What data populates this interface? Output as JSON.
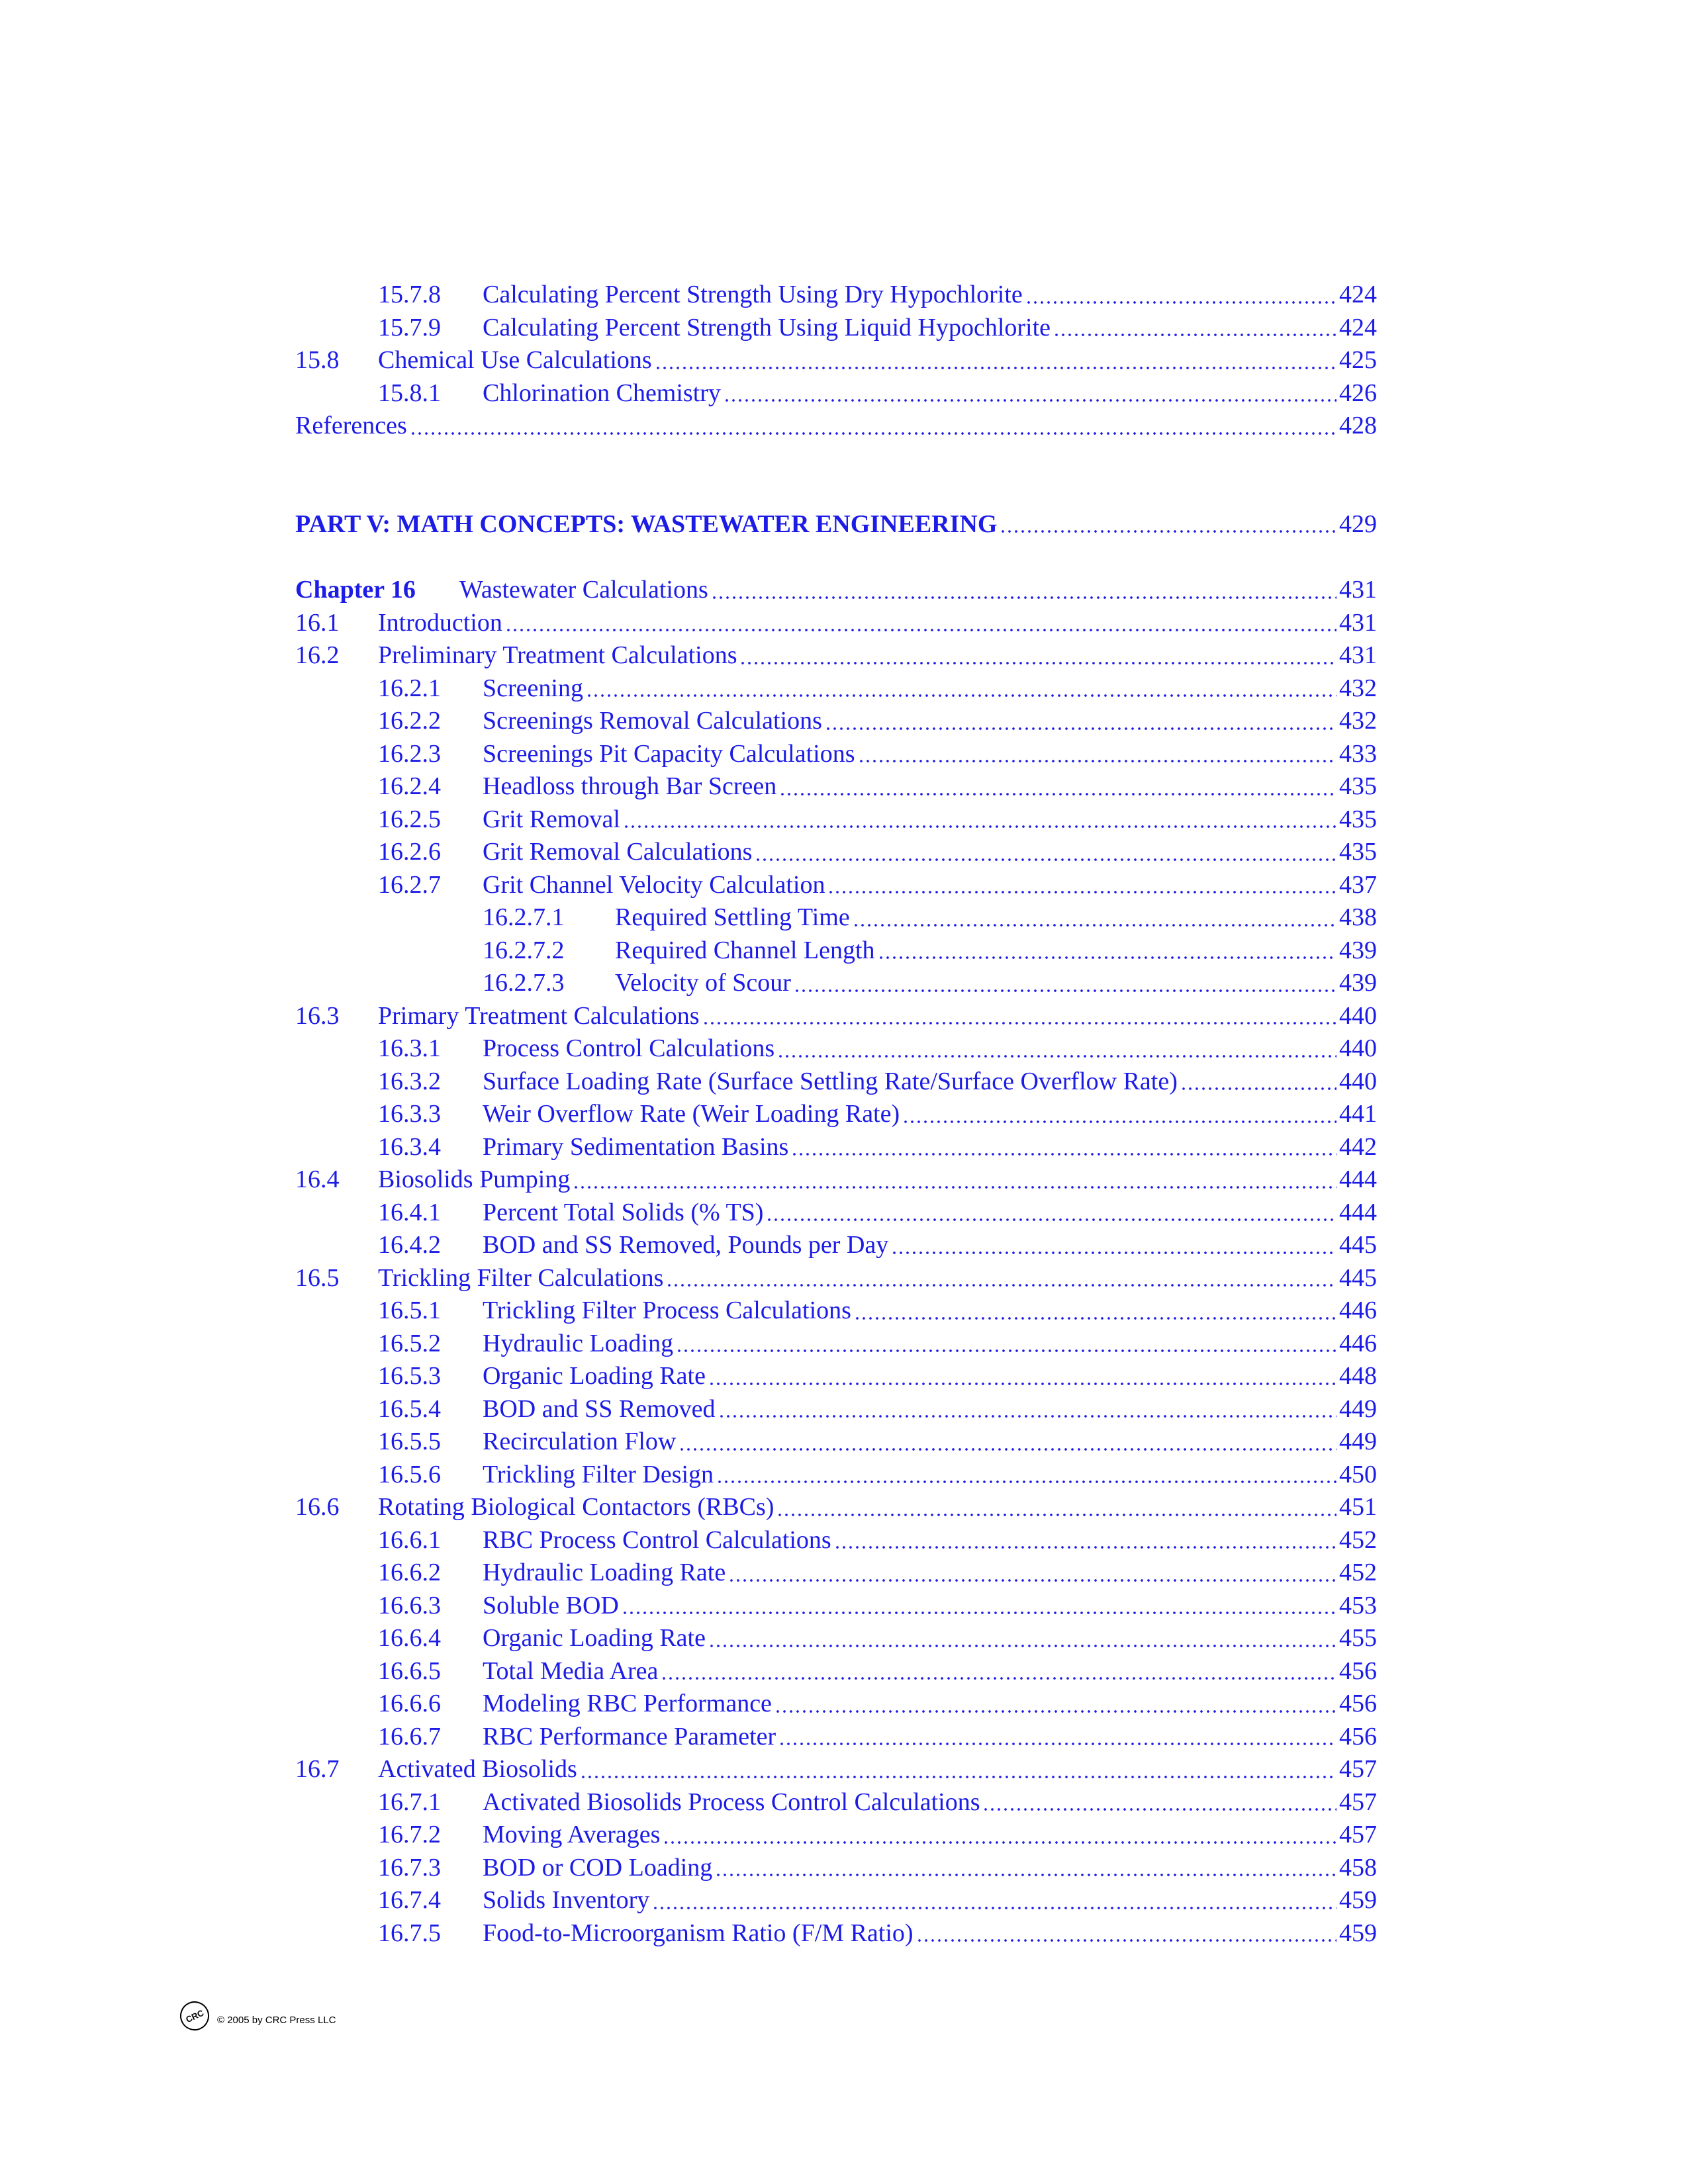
{
  "toc_top": [
    {
      "number": "15.7.8",
      "title": "Calculating Percent Strength Using Dry Hypochlorite",
      "page": "424",
      "level": 2
    },
    {
      "number": "15.7.9",
      "title": "Calculating Percent Strength Using Liquid Hypochlorite",
      "page": "424",
      "level": 2
    },
    {
      "number": "15.8",
      "title": "Chemical Use Calculations",
      "page": "425",
      "level": 1
    },
    {
      "number": "15.8.1",
      "title": "Chlorination Chemistry",
      "page": "426",
      "level": 2
    },
    {
      "title": "References",
      "page": "428",
      "level": 1
    }
  ],
  "part": {
    "title": "PART V: MATH CONCEPTS: WASTEWATER ENGINEERING",
    "page": "429"
  },
  "chapter": {
    "number": "Chapter 16",
    "title": "Wastewater Calculations",
    "page": "431"
  },
  "toc": [
    {
      "number": "16.1",
      "title": "Introduction",
      "page": "431",
      "level": 1
    },
    {
      "number": "16.2",
      "title": "Preliminary Treatment Calculations",
      "page": "431",
      "level": 1
    },
    {
      "number": "16.2.1",
      "title": "Screening",
      "page": "432",
      "level": 2
    },
    {
      "number": "16.2.2",
      "title": "Screenings Removal Calculations",
      "page": "432",
      "level": 2
    },
    {
      "number": "16.2.3",
      "title": "Screenings Pit Capacity Calculations",
      "page": "433",
      "level": 2
    },
    {
      "number": "16.2.4",
      "title": "Headloss through Bar Screen",
      "page": "435",
      "level": 2
    },
    {
      "number": "16.2.5",
      "title": "Grit Removal",
      "page": "435",
      "level": 2
    },
    {
      "number": "16.2.6",
      "title": "Grit Removal Calculations",
      "page": "435",
      "level": 2
    },
    {
      "number": "16.2.7",
      "title": "Grit Channel Velocity Calculation",
      "page": "437",
      "level": 2
    },
    {
      "number": "16.2.7.1",
      "title": "Required Settling Time",
      "page": "438",
      "level": 3
    },
    {
      "number": "16.2.7.2",
      "title": "Required Channel Length",
      "page": "439",
      "level": 3
    },
    {
      "number": "16.2.7.3",
      "title": "Velocity of Scour",
      "page": "439",
      "level": 3
    },
    {
      "number": "16.3",
      "title": "Primary Treatment Calculations",
      "page": "440",
      "level": 1
    },
    {
      "number": "16.3.1",
      "title": "Process Control Calculations",
      "page": "440",
      "level": 2
    },
    {
      "number": "16.3.2",
      "title": "Surface Loading Rate (Surface Settling Rate/Surface Overflow Rate)",
      "page": "440",
      "level": 2
    },
    {
      "number": "16.3.3",
      "title": "Weir Overflow Rate (Weir Loading Rate)",
      "page": "441",
      "level": 2
    },
    {
      "number": "16.3.4",
      "title": "Primary Sedimentation Basins",
      "page": "442",
      "level": 2
    },
    {
      "number": "16.4",
      "title": "Biosolids Pumping",
      "page": "444",
      "level": 1
    },
    {
      "number": "16.4.1",
      "title": "Percent Total Solids (% TS)",
      "page": "444",
      "level": 2
    },
    {
      "number": "16.4.2",
      "title": "BOD and SS Removed, Pounds per Day",
      "page": "445",
      "level": 2
    },
    {
      "number": "16.5",
      "title": "Trickling Filter Calculations",
      "page": "445",
      "level": 1
    },
    {
      "number": "16.5.1",
      "title": "Trickling Filter Process Calculations",
      "page": "446",
      "level": 2
    },
    {
      "number": "16.5.2",
      "title": "Hydraulic Loading",
      "page": "446",
      "level": 2
    },
    {
      "number": "16.5.3",
      "title": "Organic Loading Rate",
      "page": "448",
      "level": 2
    },
    {
      "number": "16.5.4",
      "title": "BOD and SS Removed",
      "page": "449",
      "level": 2
    },
    {
      "number": "16.5.5",
      "title": "Recirculation Flow",
      "page": "449",
      "level": 2
    },
    {
      "number": "16.5.6",
      "title": "Trickling Filter Design",
      "page": "450",
      "level": 2
    },
    {
      "number": "16.6",
      "title": "Rotating Biological Contactors (RBCs)",
      "page": "451",
      "level": 1
    },
    {
      "number": "16.6.1",
      "title": "RBC Process Control Calculations",
      "page": "452",
      "level": 2
    },
    {
      "number": "16.6.2",
      "title": "Hydraulic Loading Rate",
      "page": "452",
      "level": 2
    },
    {
      "number": "16.6.3",
      "title": "Soluble BOD",
      "page": "453",
      "level": 2
    },
    {
      "number": "16.6.4",
      "title": "Organic Loading Rate",
      "page": "455",
      "level": 2
    },
    {
      "number": "16.6.5",
      "title": "Total Media Area",
      "page": "456",
      "level": 2
    },
    {
      "number": "16.6.6",
      "title": "Modeling RBC Performance",
      "page": "456",
      "level": 2
    },
    {
      "number": "16.6.7",
      "title": "RBC Performance Parameter",
      "page": "456",
      "level": 2
    },
    {
      "number": "16.7",
      "title": "Activated Biosolids",
      "page": "457",
      "level": 1
    },
    {
      "number": "16.7.1",
      "title": "Activated Biosolids Process Control Calculations",
      "page": "457",
      "level": 2
    },
    {
      "number": "16.7.2",
      "title": "Moving Averages",
      "page": "457",
      "level": 2
    },
    {
      "number": "16.7.3",
      "title": "BOD or COD Loading",
      "page": "458",
      "level": 2
    },
    {
      "number": "16.7.4",
      "title": "Solids Inventory",
      "page": "459",
      "level": 2
    },
    {
      "number": "16.7.5",
      "title": "Food-to-Microorganism Ratio (F/M Ratio)",
      "page": "459",
      "level": 2
    }
  ],
  "footer": {
    "logo": "CRC",
    "text": "© 2005 by CRC Press LLC"
  }
}
